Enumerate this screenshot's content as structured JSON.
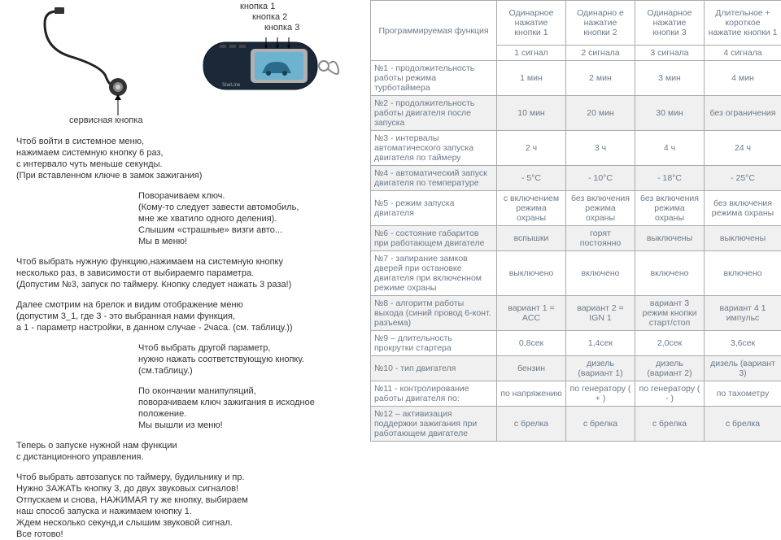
{
  "labels": {
    "btn1": "кнопка 1",
    "btn2": "кнопка 2",
    "btn3": "кнопка 3",
    "service": "сервисная кнопка"
  },
  "instructions": {
    "p1": "Чтоб войти в системное меню,\nнажимаем системную кнопку 6 раз,\nс интервало чуть меньше секунды.\n(При вставленном ключе в замок зажигания)",
    "p2": "Поворачиваем ключ.\n(Кому-то следует завести автомобиль,\nмне же хватило одного деления).\nСлышим «страшные» визги авто...\nМы в меню!",
    "p3": "Чтоб выбрать нужную функцию,нажимаем на системную кнопку\nнесколько раз, в зависимости от выбираемго параметра.\n(Допустим №3, запуск по таймеру. Кнопку следует нажать 3 раза!)",
    "p4": "Далее смотрим на брелок и видим отображение меню\n(допустим 3_1, где 3 - это выбранная нами функция,\nа 1 - параметр настройки, в данном случае - 2часа. (см. таблицу.))",
    "p5": "Чтоб выбрать другой параметр,\nнужно нажать соответствующую кнопку.\n(см.таблицу.)",
    "p6": "По окончании манипуляций,\nповорачиваем ключ зажигания в исходное положение.\nМы вышли из меню!",
    "p7": "Теперь о запуске нужной нам функции\nс дистанционного управления.",
    "p8": "Чтоб выбрать автозапуск по таймеру, будильнику и пр.\nНужно ЗАЖАТЬ кнопку 3, до двух звуковых сигналов!\nОтпускаем и снова, НАЖИМАЯ ту же кнопку, выбираем\nнаш способ запуска и нажимаем кнопку 1.\nЖдем несколько секунд,и слышим звуковой сигнал.\nВсе готово!"
  },
  "table": {
    "headers": {
      "func": "Программируемая функция",
      "c1": "Одинарное нажатие кнопки 1",
      "c2": "Одинарно е нажатие кнопки 2",
      "c3": "Одинарное нажатие кнопки 3",
      "c4": "Длительное + короткое нажатие кнопки 1",
      "s1": "1 сигнал",
      "s2": "2 сигнала",
      "s3": "3 сигнала",
      "s4": "4 сигнала"
    },
    "rows": [
      {
        "func": "№1 - продолжительность работы режима турботаймера",
        "v": [
          "1 мин",
          "2 мин",
          "3 мин",
          "4 мин"
        ]
      },
      {
        "func": "№2 - продолжительность работы двигателя после запуска",
        "v": [
          "10 мин",
          "20 мин",
          "30 мин",
          "без ограничения"
        ]
      },
      {
        "func": "№3 - интервалы автоматического запуска двигателя по таймеру",
        "v": [
          "2 ч",
          "3 ч",
          "4 ч",
          "24 ч"
        ]
      },
      {
        "func": "№4 - автоматический запуск двигателя по температуре",
        "v": [
          "- 5°C",
          "- 10°C",
          "- 18°C",
          "- 25°C"
        ]
      },
      {
        "func": "№5 - режим запуска двигателя",
        "v": [
          "с включением режима охраны",
          "без включения режима охраны",
          "без включения режима охраны",
          "без включения режима охраны"
        ]
      },
      {
        "func": "№6 - состояние габаритов при работающем двигателе",
        "v": [
          "вспышки",
          "горят постоянно",
          "выключены",
          "выключены"
        ]
      },
      {
        "func": "№7 - запирание замков дверей при остановке двигателя при включенном режиме охраны",
        "v": [
          "выключено",
          "включено",
          "включено",
          "включено"
        ]
      },
      {
        "func": "№8 - алгоритм работы выхода (синий провод 6-конт. разъема)",
        "v": [
          "вариант 1 = ACC",
          "вариант 2 = IGN 1",
          "вариант 3 режим кнопки старт/стоп",
          "вариант 4 1 импульс"
        ]
      },
      {
        "func": "№9 – длительность прокрутки стартера",
        "v": [
          "0,8сек",
          "1,4сек",
          "2,0сек",
          "3,6сек"
        ]
      },
      {
        "func": "№10 - тип двигателя",
        "v": [
          "бензин",
          "дизель (вариант 1)",
          "дизель (вариант 2)",
          "дизель (вариант 3)"
        ]
      },
      {
        "func": "№11 - контролирование работы двигателя по:",
        "v": [
          "по напряжению",
          "по генератору ( + )",
          "по генератору ( - )",
          "по тахометру"
        ]
      },
      {
        "func": "№12 – активизация поддержки зажигания при работающем двигателе",
        "v": [
          "с брелка",
          "с брелка",
          "с брелка",
          "с брелка"
        ]
      }
    ]
  },
  "colors": {
    "border": "#aaaaaa",
    "text": "#6a7a8a",
    "altRow": "#f0f0f0",
    "remoteBody": "#1a2838",
    "remoteScreen": "#6db3d0"
  }
}
